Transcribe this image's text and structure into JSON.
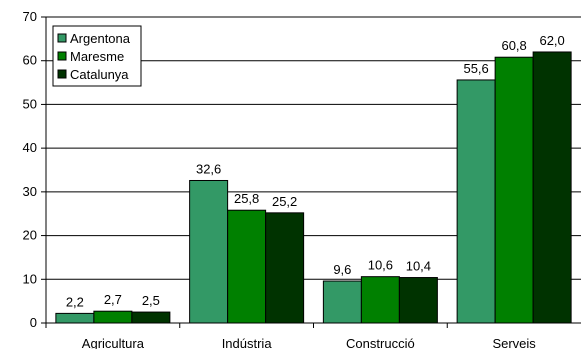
{
  "chart_data": {
    "type": "bar",
    "categories": [
      "Agricultura",
      "Indústria",
      "Construcció",
      "Serveis"
    ],
    "series": [
      {
        "name": "Argentona",
        "values": [
          2.2,
          32.6,
          9.6,
          55.6
        ],
        "labels": [
          "2,2",
          "32,6",
          "9,6",
          "55,6"
        ],
        "color": "#339966"
      },
      {
        "name": "Maresme",
        "values": [
          2.7,
          25.8,
          10.6,
          60.8
        ],
        "labels": [
          "2,7",
          "25,8",
          "10,6",
          "60,8"
        ],
        "color": "#008000"
      },
      {
        "name": "Catalunya",
        "values": [
          2.5,
          25.2,
          10.4,
          62.0
        ],
        "labels": [
          "2,5",
          "25,2",
          "10,4",
          "62,0"
        ],
        "color": "#003300"
      }
    ],
    "yticks": [
      "0",
      "10",
      "20",
      "30",
      "40",
      "50",
      "60",
      "70"
    ],
    "ylim": [
      0,
      70
    ],
    "grid": true,
    "legend_position": "top-left",
    "title": "",
    "xlabel": "",
    "ylabel": ""
  }
}
